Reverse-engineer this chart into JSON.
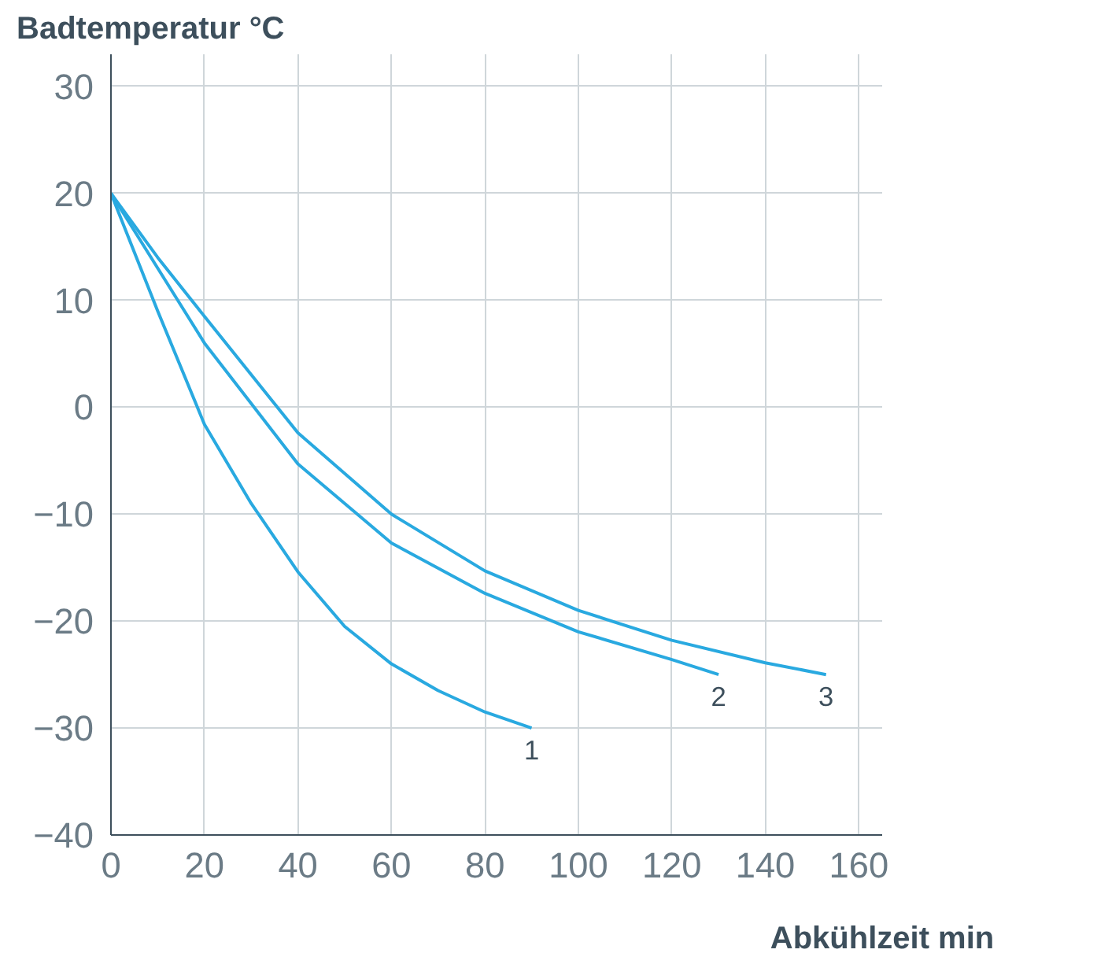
{
  "chart_data": {
    "type": "line",
    "ylabel": "Badtemperatur °C",
    "xlabel": "Abkühlzeit min",
    "xlim": [
      0,
      165
    ],
    "ylim": [
      -40,
      33
    ],
    "xticks": [
      0,
      20,
      40,
      60,
      80,
      100,
      120,
      140,
      160
    ],
    "yticks": [
      -40,
      -30,
      -20,
      -10,
      0,
      10,
      20,
      30
    ],
    "grid": true,
    "series": [
      {
        "name": "1",
        "color": "#29a9e0",
        "x": [
          0,
          10,
          20,
          30,
          40,
          50,
          60,
          70,
          80,
          90
        ],
        "values": [
          20,
          9,
          -1.6,
          -9,
          -15.4,
          -20.5,
          -24,
          -26.5,
          -28.5,
          -30
        ]
      },
      {
        "name": "2",
        "color": "#29a9e0",
        "x": [
          0,
          10,
          20,
          40,
          60,
          80,
          100,
          120,
          130
        ],
        "values": [
          20,
          13,
          6,
          -5.3,
          -12.7,
          -17.4,
          -21,
          -23.6,
          -25
        ]
      },
      {
        "name": "3",
        "color": "#29a9e0",
        "x": [
          0,
          10,
          20,
          40,
          60,
          80,
          100,
          120,
          140,
          153
        ],
        "values": [
          20,
          14,
          8.5,
          -2.4,
          -10,
          -15.3,
          -19,
          -21.8,
          -23.9,
          -25
        ]
      }
    ]
  }
}
